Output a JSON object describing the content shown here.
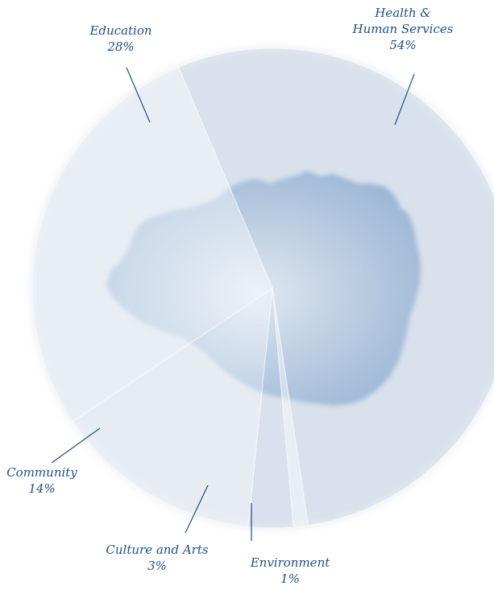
{
  "chart_data": {
    "type": "pie",
    "categories": [
      "Health & Human Services",
      "Environment",
      "Culture and Arts",
      "Community",
      "Education"
    ],
    "values": [
      54,
      1,
      3,
      14,
      28
    ],
    "labels": [
      {
        "category": "Health &",
        "category2": "Human Services",
        "percent": "54%"
      },
      {
        "category": "Environment",
        "percent": "1%"
      },
      {
        "category": "Culture and Arts",
        "percent": "3%"
      },
      {
        "category": "Community",
        "percent": "14%"
      },
      {
        "category": "Education",
        "percent": "28%"
      }
    ],
    "colors": {
      "pie_background": "#dfe7f0",
      "slice_dark": "#cfdbe7",
      "slice_light": "#e9eff5",
      "island_center": "#eef3f8",
      "island_edge": "#3a6fa8",
      "leader_line": "#1f4f86",
      "label_text": "#1f4f86"
    }
  }
}
